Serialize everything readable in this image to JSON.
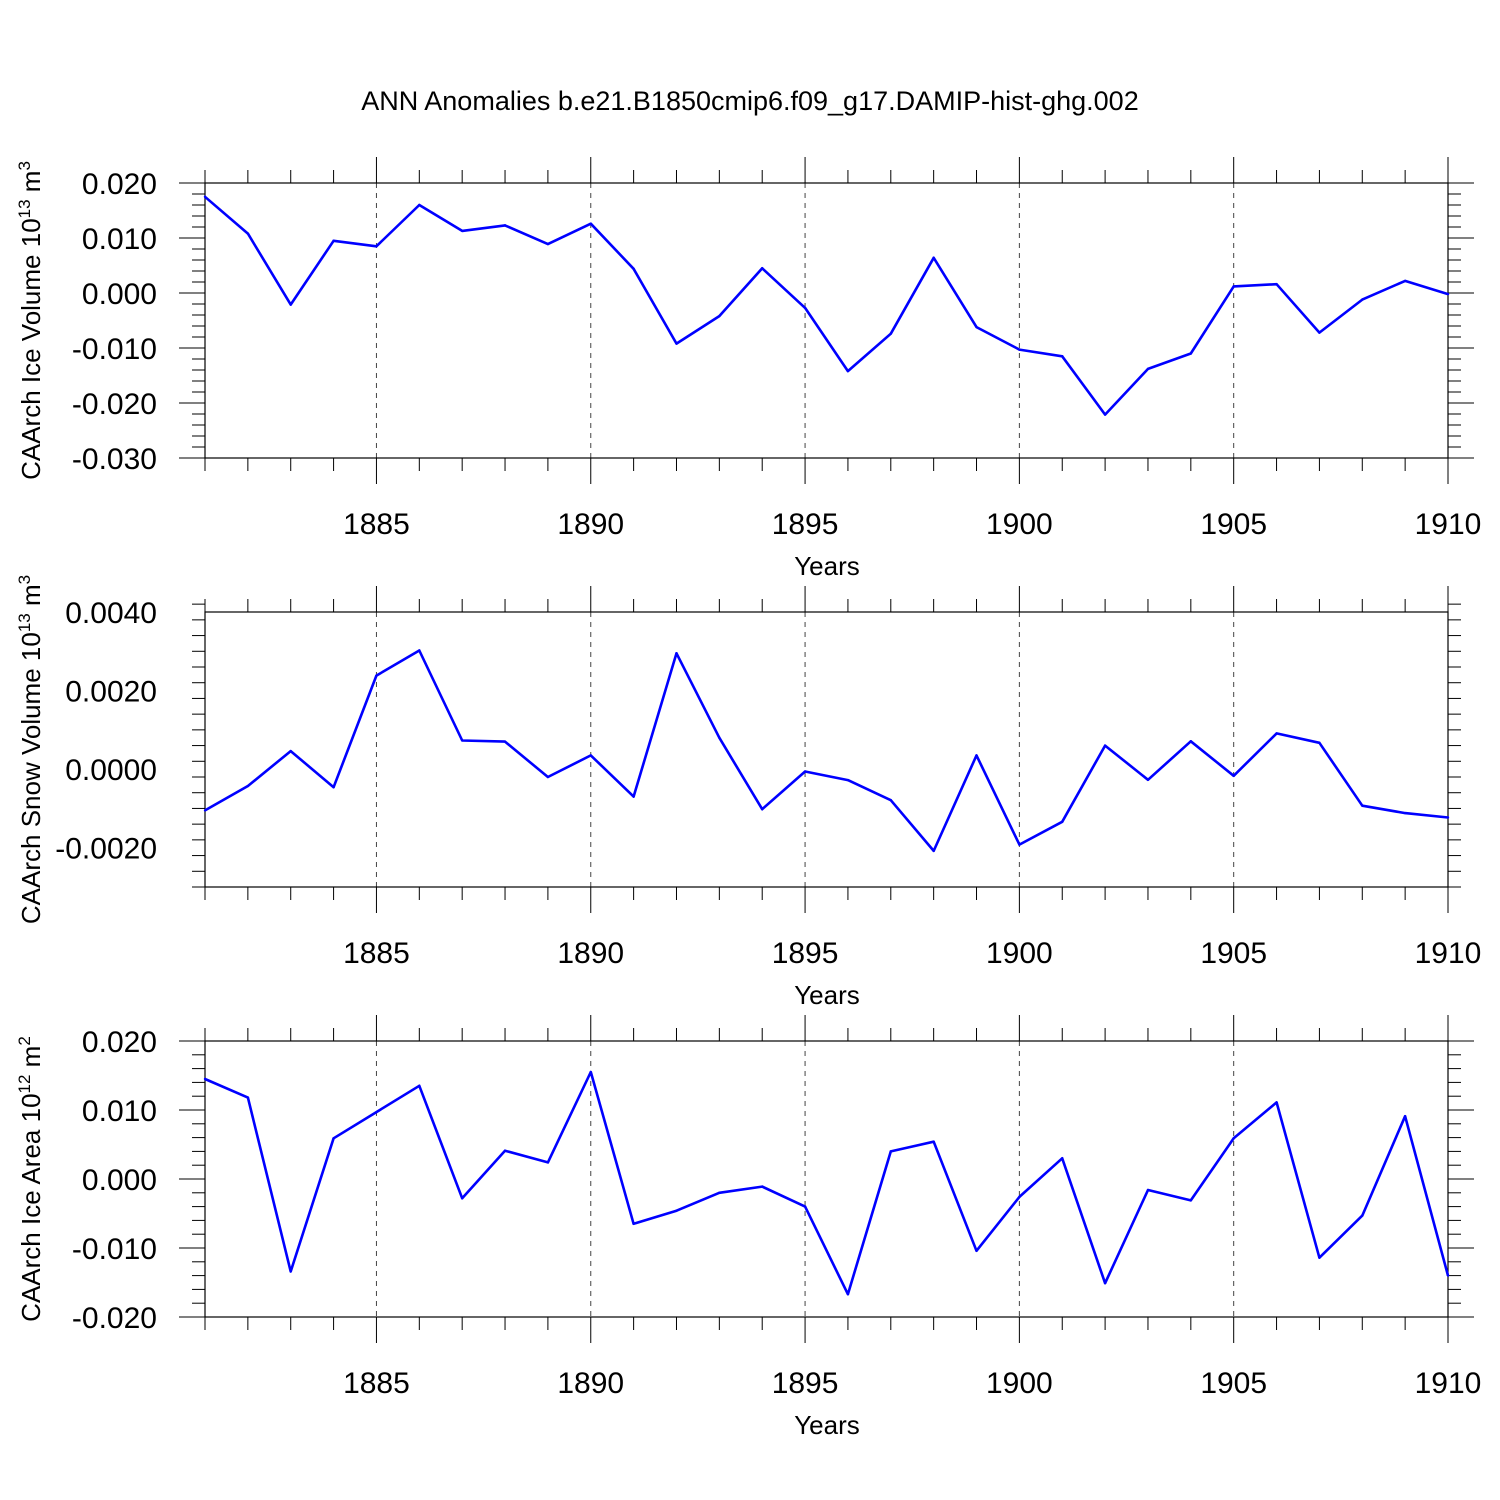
{
  "title": "ANN Anomalies b.e21.B1850cmip6.f09_g17.DAMIP-hist-ghg.002",
  "colors": {
    "line": "#0000ff",
    "grid": "#444444"
  },
  "x_tick_labels": [
    "1885",
    "1890",
    "1895",
    "1900",
    "1905",
    "1910"
  ],
  "chart_data": [
    {
      "type": "line",
      "ylabel_main": "CAArch Ice Volume 10",
      "ylabel_sup": "13",
      "ylabel_unit": " m",
      "ylabel_unit_sup": "3",
      "xlabel": "Years",
      "xlim": [
        1881,
        1910
      ],
      "ylim": [
        -0.03,
        0.02
      ],
      "x_ticks": [
        1885,
        1890,
        1895,
        1900,
        1905,
        1910
      ],
      "y_ticks": [
        -0.03,
        -0.02,
        -0.01,
        0.0,
        0.01,
        0.02
      ],
      "y_tick_labels": [
        "-0.030",
        "-0.020",
        "-0.010",
        "0.000",
        "0.010",
        "0.020"
      ],
      "y_minor_step": 0.002,
      "grid": "dashed vertical at major x ticks",
      "x": [
        1881,
        1882,
        1883,
        1884,
        1885,
        1886,
        1887,
        1888,
        1889,
        1890,
        1891,
        1892,
        1893,
        1894,
        1895,
        1896,
        1897,
        1898,
        1899,
        1900,
        1901,
        1902,
        1903,
        1904,
        1905,
        1906,
        1907,
        1908,
        1909,
        1910
      ],
      "values": [
        0.0175,
        0.0108,
        -0.0021,
        0.0095,
        0.0085,
        0.016,
        0.0113,
        0.0123,
        0.0089,
        0.0126,
        0.0044,
        -0.0092,
        -0.0042,
        0.0045,
        -0.0027,
        -0.0142,
        -0.0074,
        0.0064,
        -0.0062,
        -0.0103,
        -0.0115,
        -0.0221,
        -0.0138,
        -0.011,
        0.0012,
        0.0016,
        -0.0072,
        -0.0012,
        0.0022,
        -0.0002
      ]
    },
    {
      "type": "line",
      "ylabel_main": "CAArch Snow Volume 10",
      "ylabel_sup": "13",
      "ylabel_unit": " m",
      "ylabel_unit_sup": "3",
      "xlabel": "Years",
      "xlim": [
        1881,
        1910
      ],
      "ylim": [
        -0.003,
        0.004
      ],
      "x_ticks": [
        1885,
        1890,
        1895,
        1900,
        1905,
        1910
      ],
      "y_ticks": [
        -0.002,
        0.0,
        0.002,
        0.004
      ],
      "y_tick_labels": [
        "-0.0020",
        "0.0000",
        "0.0020",
        "0.0040"
      ],
      "y_minor_step": 0.0004,
      "grid": "dashed vertical at major x ticks",
      "x": [
        1881,
        1882,
        1883,
        1884,
        1885,
        1886,
        1887,
        1888,
        1889,
        1890,
        1891,
        1892,
        1893,
        1894,
        1895,
        1896,
        1897,
        1898,
        1899,
        1900,
        1901,
        1902,
        1903,
        1904,
        1905,
        1906,
        1907,
        1908,
        1909,
        1910
      ],
      "values": [
        -0.00105,
        -0.00043,
        0.00046,
        -0.00046,
        0.00238,
        0.00302,
        0.00073,
        0.0007,
        -0.0002,
        0.00035,
        -0.0007,
        0.00295,
        0.0008,
        -0.00102,
        -6e-05,
        -0.00028,
        -0.00079,
        -0.00208,
        0.00035,
        -0.00192,
        -0.00134,
        0.0006,
        -0.00027,
        0.00071,
        -0.00017,
        0.00091,
        0.00067,
        -0.00093,
        -0.00112,
        -0.00123
      ]
    },
    {
      "type": "line",
      "ylabel_main": "CAArch Ice Area 10",
      "ylabel_sup": "12",
      "ylabel_unit": " m",
      "ylabel_unit_sup": "2",
      "xlabel": "Years",
      "xlim": [
        1881,
        1910
      ],
      "ylim": [
        -0.02,
        0.02
      ],
      "x_ticks": [
        1885,
        1890,
        1895,
        1900,
        1905,
        1910
      ],
      "y_ticks": [
        -0.02,
        -0.01,
        0.0,
        0.01,
        0.02
      ],
      "y_tick_labels": [
        "-0.020",
        "-0.010",
        "0.000",
        "0.010",
        "0.020"
      ],
      "y_minor_step": 0.002,
      "grid": "dashed vertical at major x ticks",
      "x": [
        1881,
        1882,
        1883,
        1884,
        1885,
        1886,
        1887,
        1888,
        1889,
        1890,
        1891,
        1892,
        1893,
        1894,
        1895,
        1896,
        1897,
        1898,
        1899,
        1900,
        1901,
        1902,
        1903,
        1904,
        1905,
        1906,
        1907,
        1908,
        1909,
        1910
      ],
      "values": [
        0.0145,
        0.0118,
        -0.0134,
        0.0059,
        0.0097,
        0.0135,
        -0.0028,
        0.0041,
        0.0024,
        0.0155,
        -0.0065,
        -0.0046,
        -0.002,
        -0.0011,
        -0.004,
        -0.0167,
        0.004,
        0.0054,
        -0.0104,
        -0.0026,
        0.003,
        -0.0151,
        -0.0016,
        -0.0031,
        0.0059,
        0.0111,
        -0.0114,
        -0.0053,
        0.0091,
        -0.014
      ]
    }
  ]
}
